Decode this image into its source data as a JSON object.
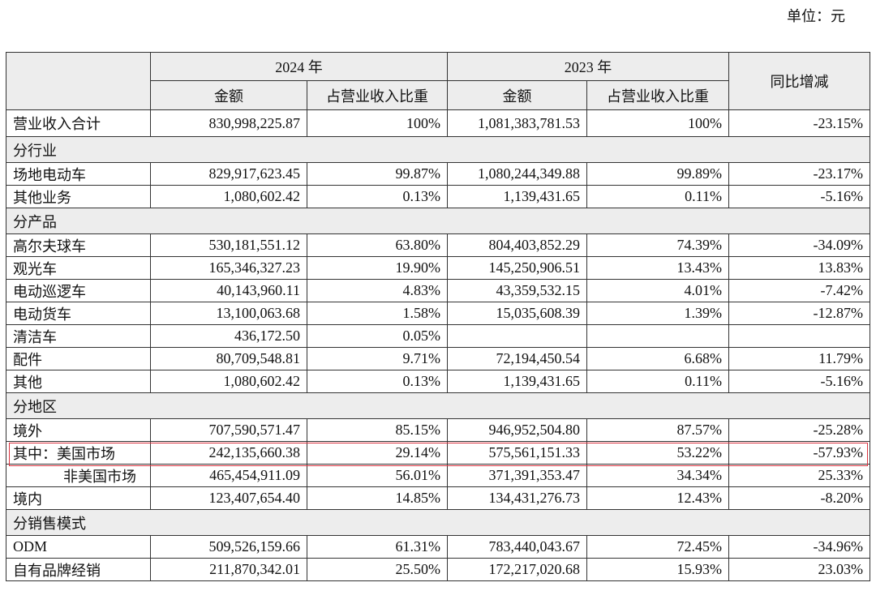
{
  "unit": "单位：元",
  "table": {
    "header": {
      "year_2024": "2024 年",
      "year_2023": "2023 年",
      "yoy": "同比增减",
      "sub": [
        "金额",
        "占营业收入比重",
        "金额",
        "占营业收入比重"
      ]
    },
    "rows": [
      {
        "cells": [
          "营业收入合计",
          "830,998,225.87",
          "100%",
          "1,081,383,781.53",
          "100%",
          "-23.15%"
        ],
        "total": true
      },
      {
        "section": "分行业"
      },
      {
        "cells": [
          "场地电动车",
          "829,917,623.45",
          "99.87%",
          "1,080,244,349.88",
          "99.89%",
          "-23.17%"
        ]
      },
      {
        "cells": [
          "其他业务",
          "1,080,602.42",
          "0.13%",
          "1,139,431.65",
          "0.11%",
          "-5.16%"
        ]
      },
      {
        "section": "分产品"
      },
      {
        "cells": [
          "高尔夫球车",
          "530,181,551.12",
          "63.80%",
          "804,403,852.29",
          "74.39%",
          "-34.09%"
        ]
      },
      {
        "cells": [
          "观光车",
          "165,346,327.23",
          "19.90%",
          "145,250,906.51",
          "13.43%",
          "13.83%"
        ]
      },
      {
        "cells": [
          "电动巡逻车",
          "40,143,960.11",
          "4.83%",
          "43,359,532.15",
          "4.01%",
          "-7.42%"
        ]
      },
      {
        "cells": [
          "电动货车",
          "13,100,063.68",
          "1.58%",
          "15,035,608.39",
          "1.39%",
          "-12.87%"
        ]
      },
      {
        "cells": [
          "清洁车",
          "436,172.50",
          "0.05%",
          null,
          null,
          null
        ]
      },
      {
        "cells": [
          "配件",
          "80,709,548.81",
          "9.71%",
          "72,194,450.54",
          "6.68%",
          "11.79%"
        ]
      },
      {
        "cells": [
          "其他",
          "1,080,602.42",
          "0.13%",
          "1,139,431.65",
          "0.11%",
          "-5.16%"
        ]
      },
      {
        "section": "分地区"
      },
      {
        "cells": [
          "境外",
          "707,590,571.47",
          "85.15%",
          "946,952,504.80",
          "87.57%",
          "-25.28%"
        ]
      },
      {
        "cells": [
          "其中：美国市场",
          "242,135,660.38",
          "29.14%",
          "575,561,151.33",
          "53.22%",
          "-57.93%"
        ],
        "highlight": true
      },
      {
        "cells": [
          "非美国市场",
          "465,454,911.09",
          "56.01%",
          "371,391,353.47",
          "34.34%",
          "25.33%"
        ],
        "indent": true
      },
      {
        "cells": [
          "境内",
          "123,407,654.40",
          "14.85%",
          "134,431,276.73",
          "12.43%",
          "-8.20%"
        ]
      },
      {
        "section": "分销售模式"
      },
      {
        "cells": [
          "ODM",
          "509,526,159.66",
          "61.31%",
          "783,440,043.67",
          "72.45%",
          "-34.96%"
        ]
      },
      {
        "cells": [
          "自有品牌经销",
          "211,870,342.01",
          "25.50%",
          "172,217,020.68",
          "15.93%",
          "23.03%"
        ]
      }
    ]
  }
}
